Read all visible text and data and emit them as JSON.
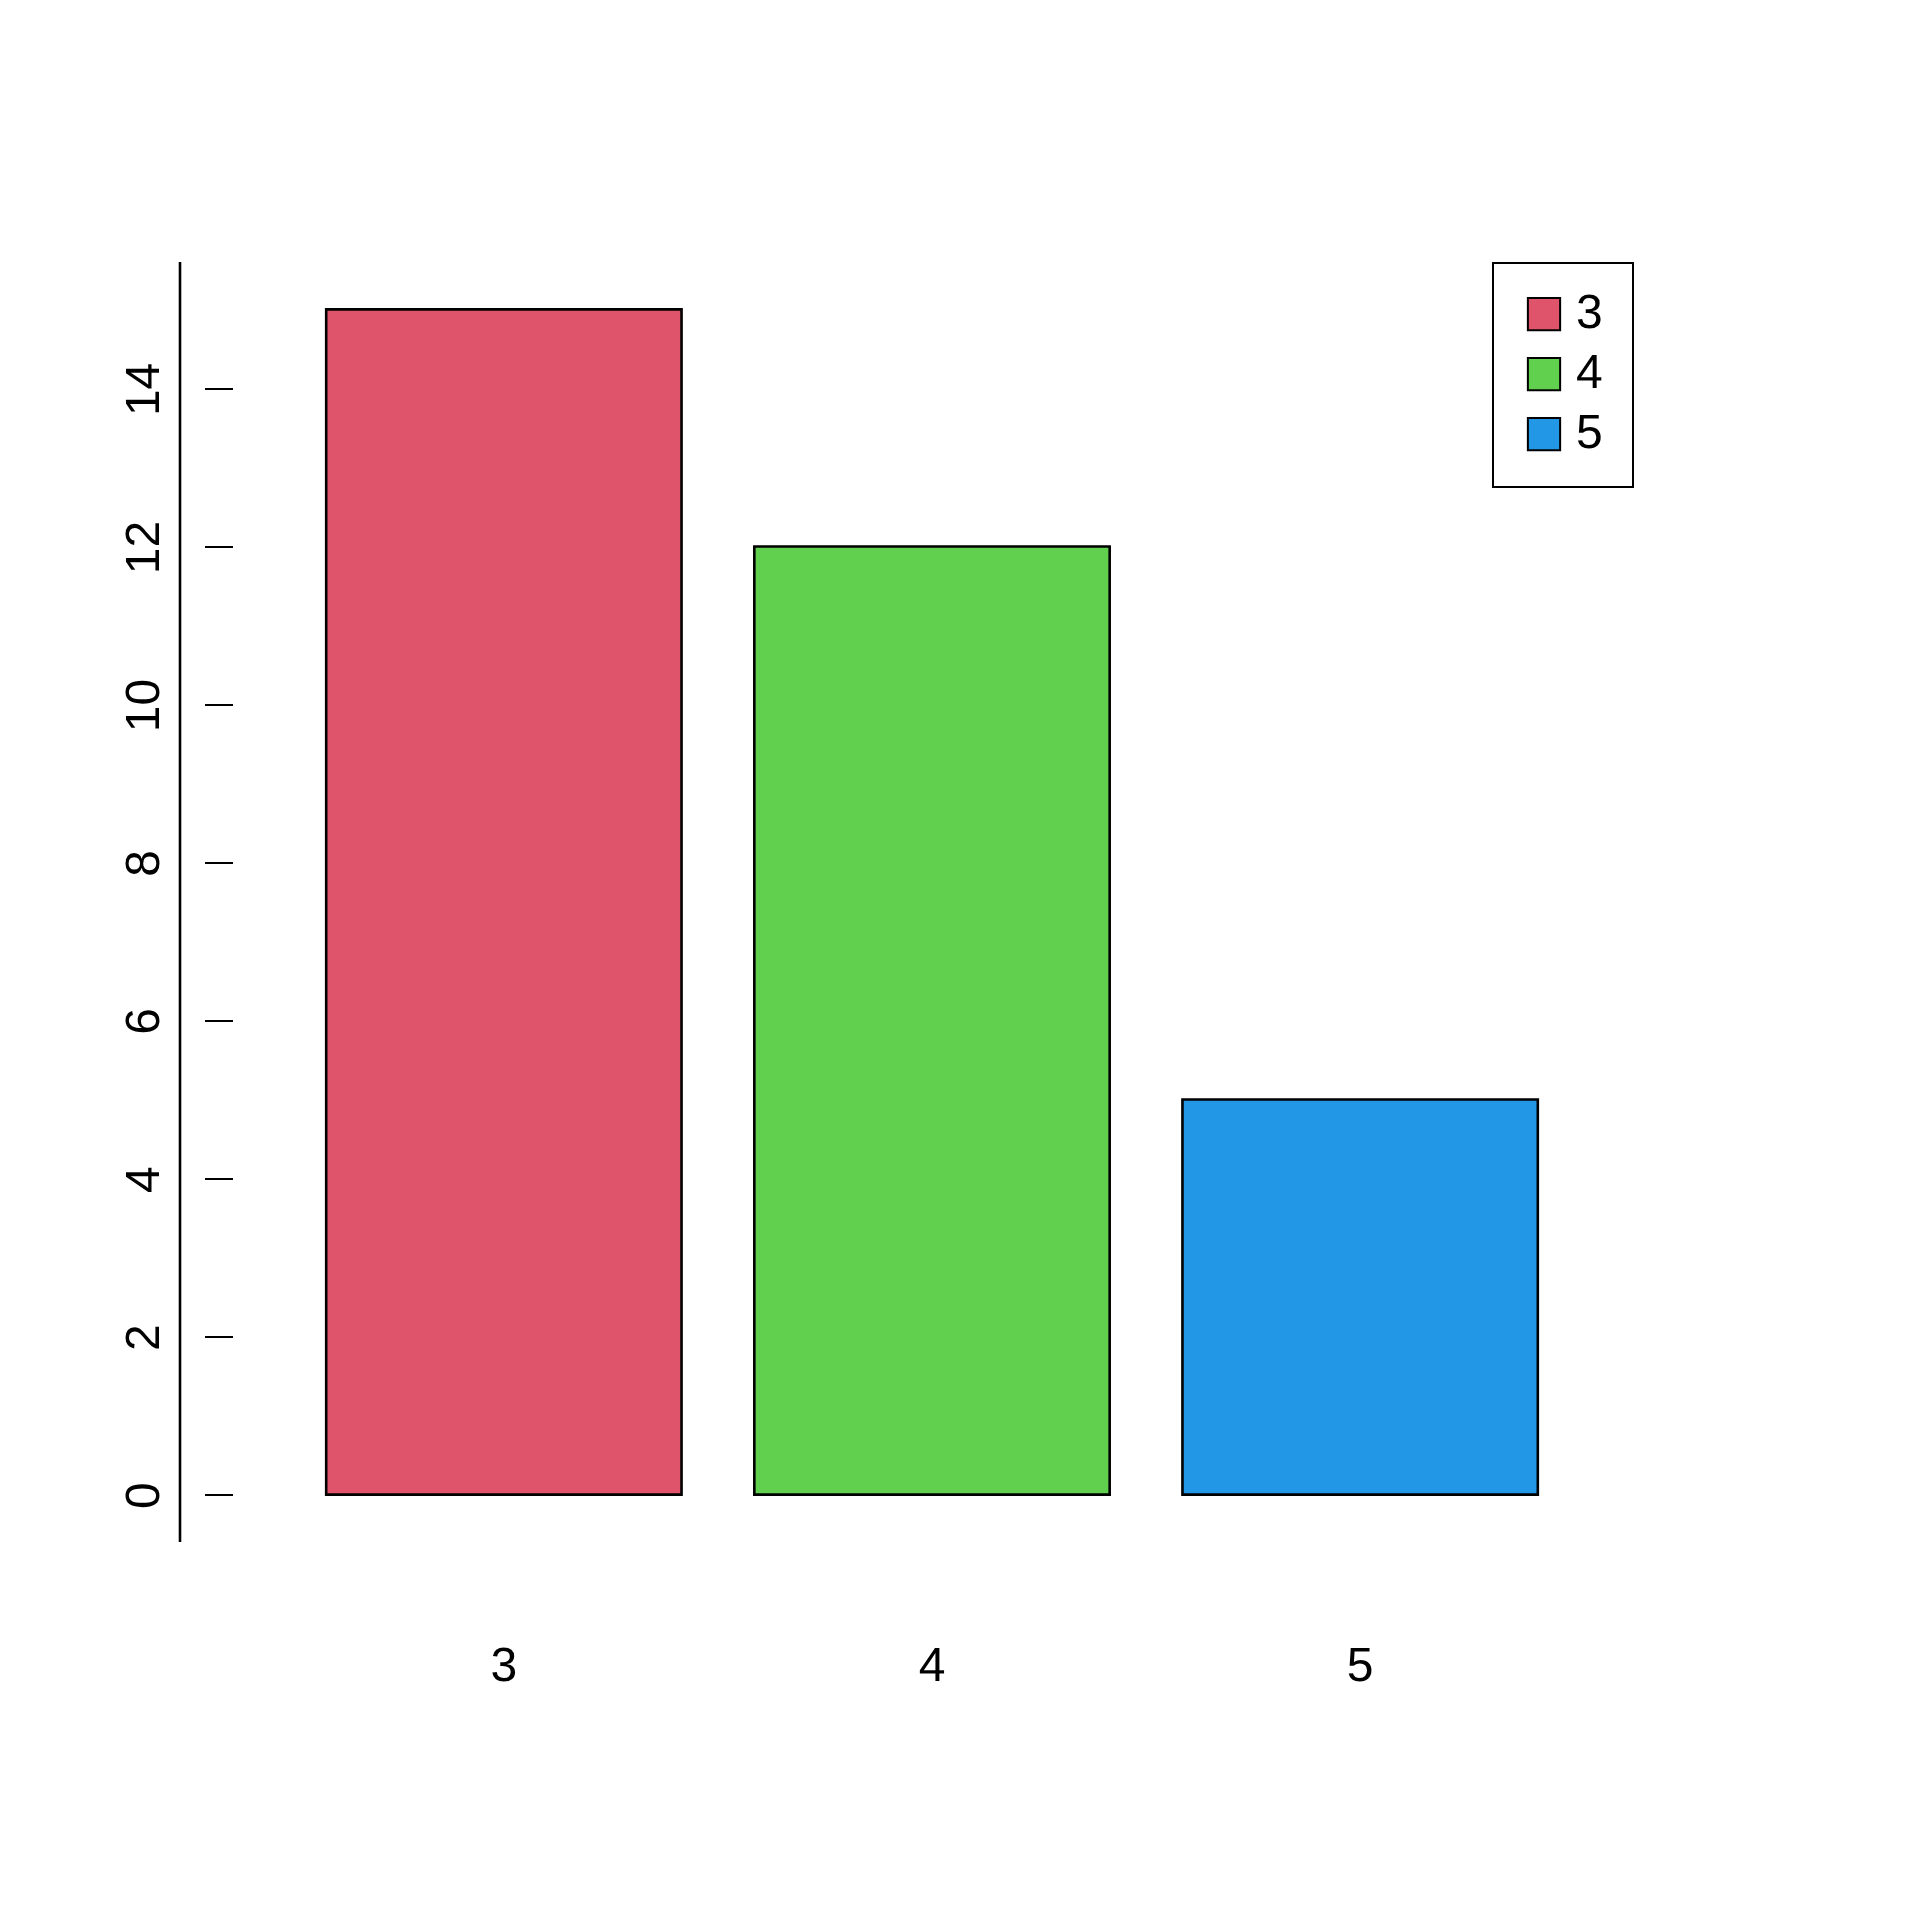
{
  "chart_data": {
    "type": "bar",
    "categories": [
      "3",
      "4",
      "5"
    ],
    "series": [
      {
        "name": "3",
        "color": "#df536b",
        "values": [
          15,
          null,
          null
        ]
      },
      {
        "name": "4",
        "color": "#61d04f",
        "values": [
          null,
          12,
          null
        ]
      },
      {
        "name": "5",
        "color": "#2297e6",
        "values": [
          null,
          null,
          5
        ]
      }
    ],
    "ylim": [
      -0.6,
      15.6
    ],
    "yticks": [
      0,
      2,
      4,
      6,
      8,
      10,
      12,
      14
    ],
    "grid": false,
    "legend": "top right"
  }
}
